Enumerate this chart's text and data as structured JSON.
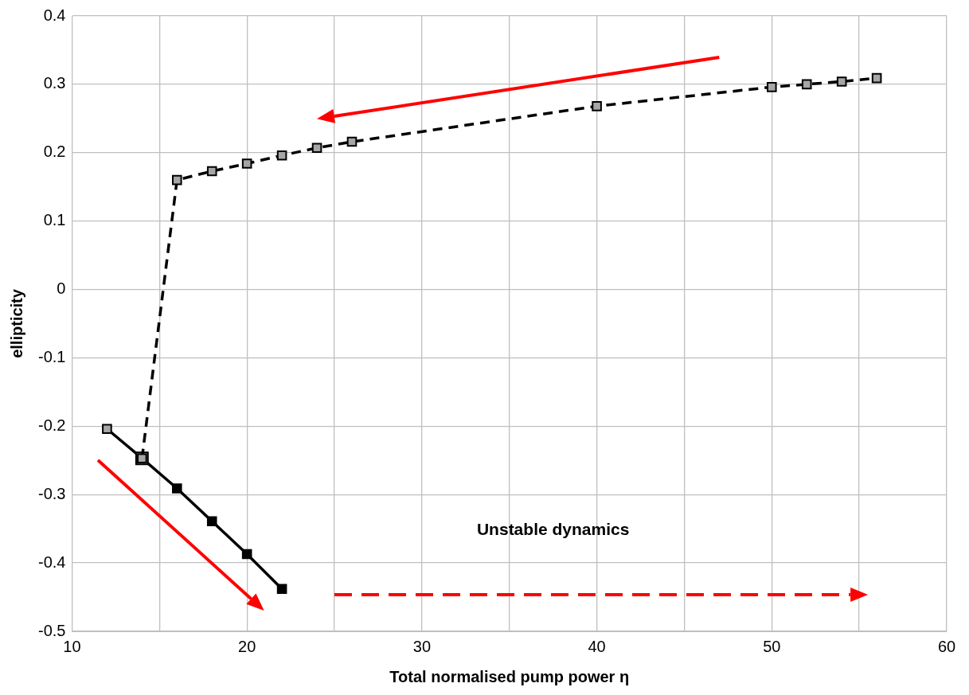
{
  "chart_data": {
    "type": "line",
    "xlabel": "Total normalised pump power η",
    "ylabel": "ellipticity",
    "xlim": [
      10,
      60
    ],
    "xticks": [
      10,
      {
        "value": 15,
        "label": null
      },
      20,
      {
        "value": 25,
        "label": null
      },
      30,
      {
        "value": 35,
        "label": null
      },
      40,
      {
        "value": 45,
        "label": null
      },
      50,
      {
        "value": 55,
        "label": null
      },
      60
    ],
    "ylim": [
      -0.5,
      0.4
    ],
    "yticks": [
      -0.5,
      -0.4,
      -0.3,
      -0.2,
      -0.1,
      0,
      0.1,
      0.2,
      0.3,
      0.4
    ],
    "grid": true,
    "legend": false,
    "marker": "square",
    "annotations": [
      "Unstable dynamics"
    ],
    "series": [
      {
        "color": "#000000",
        "line_style": "dashed",
        "colors": [
          "#a6a6a6",
          "#a6a6a6",
          "#a6a6a6",
          "#a6a6a6",
          "#a6a6a6",
          "#a6a6a6",
          "#a6a6a6",
          "#a6a6a6",
          "#a6a6a6",
          "#a6a6a6",
          "#a6a6a6",
          "#a6a6a6"
        ],
        "x": [
          14,
          16,
          18,
          20,
          22,
          24,
          26,
          40,
          50,
          52,
          54,
          56
        ],
        "values": [
          -0.247,
          0.16,
          0.173,
          0.184,
          0.196,
          0.207,
          0.216,
          0.268,
          0.296,
          0.3,
          0.304,
          0.309
        ]
      },
      {
        "color": "#000000",
        "line_style": "solid",
        "colors": [
          "#a6a6a6",
          "#a6a6a6",
          "#000000",
          "#000000",
          "#000000",
          "#000000"
        ],
        "x": [
          12,
          14,
          16,
          18,
          20,
          22
        ],
        "values": [
          -0.204,
          -0.247,
          -0.291,
          -0.339,
          -0.387,
          -0.438
        ]
      }
    ]
  }
}
